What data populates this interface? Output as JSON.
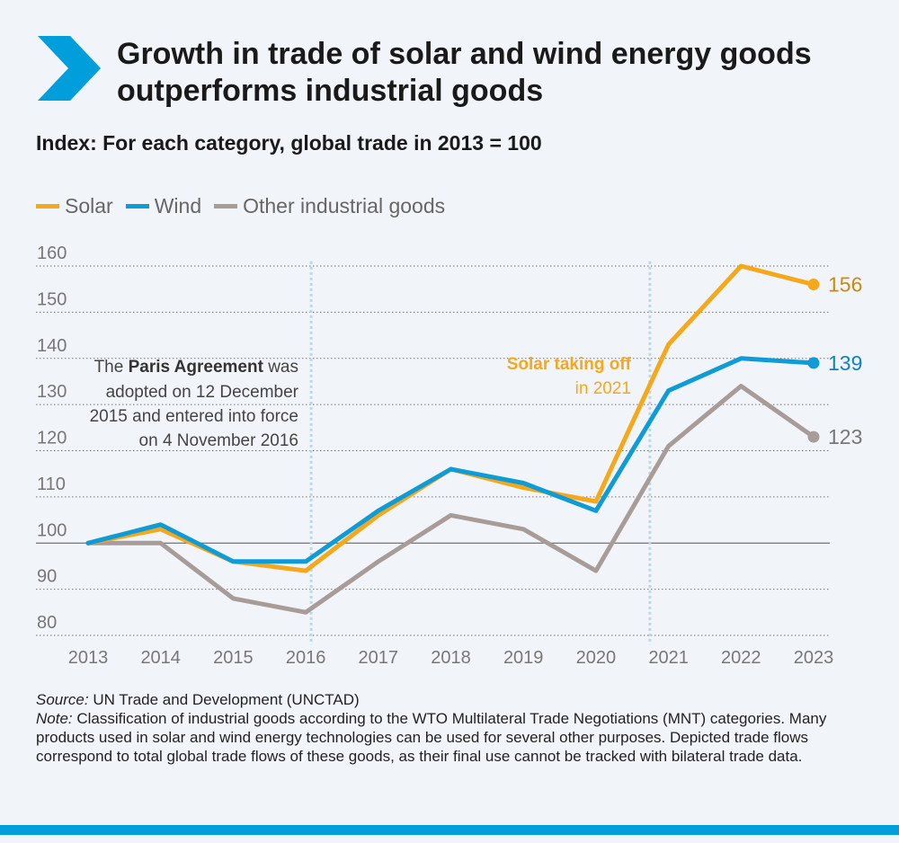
{
  "header": {
    "title": "Growth in trade of solar and wind energy goods outperforms industrial goods",
    "subtitle": "Index: For each category, global trade in 2013 = 100"
  },
  "colors": {
    "solar": "#f5a81c",
    "wind": "#0e9bd6",
    "other": "#a89c98",
    "accent": "#009edb"
  },
  "chart_data": {
    "type": "line",
    "title": "Growth in trade of solar and wind energy goods outperforms industrial goods",
    "subtitle": "Index: For each category, global trade in 2013 = 100",
    "xlabel": "",
    "ylabel": "",
    "x": [
      "2013",
      "2014",
      "2015",
      "2016",
      "2017",
      "2018",
      "2019",
      "2020",
      "2021",
      "2022",
      "2023"
    ],
    "yticks": [
      "80",
      "90",
      "100",
      "110",
      "120",
      "130",
      "140",
      "150",
      "160"
    ],
    "ylim": [
      77,
      162
    ],
    "baseline": 100,
    "grid": true,
    "legend_position": "top-left",
    "series": [
      {
        "name": "Solar",
        "key": "solar",
        "values": [
          100,
          103,
          96,
          94,
          106,
          116,
          112,
          109,
          143,
          160,
          156
        ],
        "end_label": "156"
      },
      {
        "name": "Wind",
        "key": "wind",
        "values": [
          100,
          104,
          96,
          96,
          107,
          116,
          113,
          107,
          133,
          140,
          139
        ],
        "end_label": "139"
      },
      {
        "name": "Other industrial goods",
        "key": "other",
        "values": [
          100,
          100,
          88,
          85,
          96,
          106,
          103,
          94,
          121,
          134,
          123
        ],
        "end_label": "123"
      }
    ],
    "annotations": [
      {
        "id": "paris",
        "year": "2016",
        "lines": [
          "The ",
          "Paris Agreement",
          " was",
          "adopted on 12 December",
          "2015 and entered into force",
          "on 4 November 2016"
        ]
      },
      {
        "id": "solar-takeoff",
        "year": "2021",
        "line1": "Solar taking off",
        "line2": "in 2021"
      }
    ]
  },
  "footer": {
    "source_label": "Source:",
    "source_text": " UN Trade and Development (UNCTAD)",
    "note_label": "Note:",
    "note_text": " Classification of industrial goods according to the WTO Multilateral Trade Negotiations (MNT) categories. Many products used in solar and wind energy technologies can be used for several other purposes. Depicted trade flows correspond to total global trade flows of these goods, as their final use cannot be tracked with bilateral trade data."
  }
}
